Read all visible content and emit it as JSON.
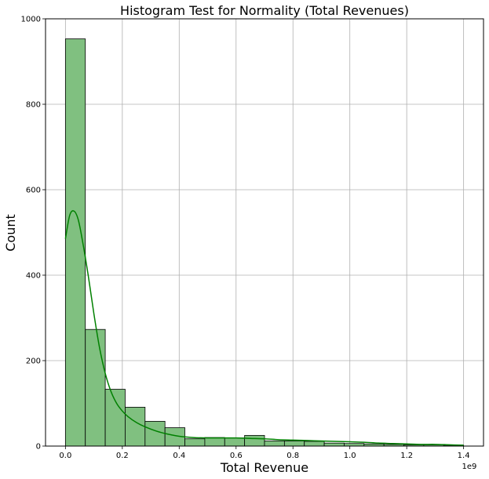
{
  "chart_data": {
    "type": "bar",
    "title": "Histogram Test for Normality (Total Revenues)",
    "xlabel": "Total Revenue",
    "ylabel": "Count",
    "x_offset_label": "1e9",
    "xlim": [
      -0.07,
      1.47
    ],
    "ylim": [
      0,
      1000
    ],
    "grid": true,
    "bin_width": 0.07,
    "bins_start": [
      0.0,
      0.07,
      0.14,
      0.21,
      0.28,
      0.35,
      0.42,
      0.49,
      0.56,
      0.63,
      0.7,
      0.77,
      0.84,
      0.91,
      0.98,
      1.05,
      1.12,
      1.19,
      1.26,
      1.33
    ],
    "values": [
      953,
      273,
      133,
      91,
      58,
      43,
      17,
      20,
      19,
      25,
      12,
      12,
      11,
      7,
      6,
      5,
      4,
      3,
      3,
      2
    ],
    "kde": {
      "x": [
        0.0,
        0.015,
        0.03,
        0.045,
        0.06,
        0.08,
        0.1,
        0.12,
        0.14,
        0.16,
        0.18,
        0.2,
        0.22,
        0.25,
        0.28,
        0.32,
        0.36,
        0.4,
        0.45,
        0.5,
        0.55,
        0.6,
        0.65,
        0.7,
        0.75,
        0.8,
        0.85,
        0.9,
        0.95,
        1.0,
        1.05,
        1.1,
        1.15,
        1.2,
        1.25,
        1.3,
        1.35,
        1.4
      ],
      "y": [
        485,
        540,
        550,
        530,
        480,
        400,
        310,
        230,
        170,
        128,
        100,
        82,
        69,
        55,
        45,
        35,
        28,
        23,
        20,
        19,
        19,
        19,
        18,
        17,
        15,
        14,
        13,
        12,
        11,
        10,
        9,
        7,
        6,
        5,
        4,
        4,
        3,
        2
      ]
    },
    "x_ticks": [
      0.0,
      0.2,
      0.4,
      0.6,
      0.8,
      1.0,
      1.2,
      1.4
    ],
    "x_tick_labels": [
      "0.0",
      "0.2",
      "0.4",
      "0.6",
      "0.8",
      "1.0",
      "1.2",
      "1.4"
    ],
    "y_ticks": [
      0,
      200,
      400,
      600,
      800,
      1000
    ],
    "y_tick_labels": [
      "0",
      "200",
      "400",
      "600",
      "800",
      "1000"
    ],
    "colors": {
      "bar_fill": "#80c080",
      "bar_edge": "#000000",
      "kde_line": "#008000",
      "grid": "#b0b0b0"
    }
  }
}
